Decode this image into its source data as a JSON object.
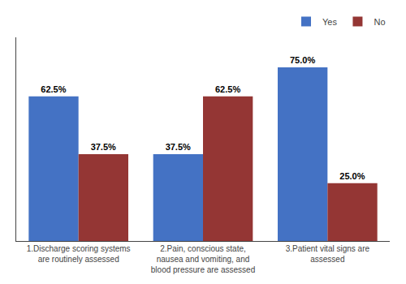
{
  "chart_data": {
    "type": "bar",
    "categories": [
      "1.Discharge scoring systems\nare routinely assessed",
      "2.Pain, conscious state,\nnausea and vomiting, and\nblood pressure are assessed",
      "3.Patient vital signs are\nassessed"
    ],
    "series": [
      {
        "name": "Yes",
        "color": "#4472C4",
        "values": [
          62.5,
          37.5,
          75.0
        ],
        "value_labels": [
          "62.5%",
          "37.5%",
          "75.0%"
        ]
      },
      {
        "name": "No",
        "color": "#943634",
        "values": [
          37.5,
          62.5,
          25.0
        ],
        "value_labels": [
          "37.5%",
          "62.5%",
          "25.0%"
        ]
      }
    ],
    "ylim": [
      0,
      88
    ],
    "yticks": [],
    "grid": false,
    "legend": "upper right",
    "data_labels": true,
    "tick_labels": "x"
  }
}
